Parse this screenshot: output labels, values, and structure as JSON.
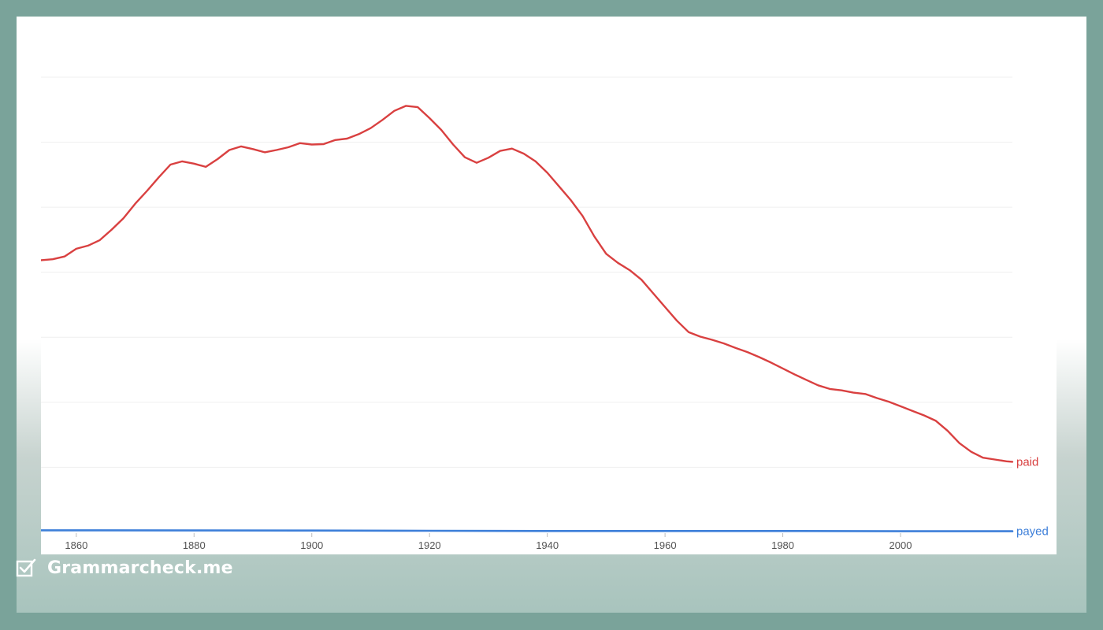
{
  "chart_data": {
    "type": "line",
    "title": "",
    "xlabel": "",
    "ylabel": "",
    "xlim": [
      1854,
      2019
    ],
    "ylim": [
      0,
      100
    ],
    "grid": true,
    "y_tick_labels_shown": false,
    "x_ticks": [
      1860,
      1880,
      1900,
      1920,
      1940,
      1960,
      1980,
      2000
    ],
    "x_tick_labels": [
      "1860",
      "1880",
      "1900",
      "1920",
      "1940",
      "1960",
      "1980",
      "2000"
    ],
    "series": [
      {
        "name": "paid",
        "color": "#d94040",
        "points": [
          [
            1854,
            59.8
          ],
          [
            1856,
            60.0
          ],
          [
            1858,
            60.6
          ],
          [
            1860,
            62.3
          ],
          [
            1862,
            63.0
          ],
          [
            1864,
            64.2
          ],
          [
            1866,
            66.5
          ],
          [
            1868,
            69.0
          ],
          [
            1870,
            72.2
          ],
          [
            1872,
            75.0
          ],
          [
            1874,
            78.0
          ],
          [
            1876,
            80.8
          ],
          [
            1878,
            81.5
          ],
          [
            1880,
            81.0
          ],
          [
            1882,
            80.3
          ],
          [
            1884,
            82.0
          ],
          [
            1886,
            84.0
          ],
          [
            1888,
            84.8
          ],
          [
            1890,
            84.2
          ],
          [
            1892,
            83.5
          ],
          [
            1894,
            84.0
          ],
          [
            1896,
            84.6
          ],
          [
            1898,
            85.5
          ],
          [
            1900,
            85.2
          ],
          [
            1902,
            85.3
          ],
          [
            1904,
            86.2
          ],
          [
            1906,
            86.5
          ],
          [
            1908,
            87.5
          ],
          [
            1910,
            88.8
          ],
          [
            1912,
            90.6
          ],
          [
            1914,
            92.6
          ],
          [
            1916,
            93.7
          ],
          [
            1918,
            93.4
          ],
          [
            1920,
            91.0
          ],
          [
            1922,
            88.4
          ],
          [
            1924,
            85.2
          ],
          [
            1926,
            82.4
          ],
          [
            1928,
            81.2
          ],
          [
            1930,
            82.3
          ],
          [
            1932,
            83.8
          ],
          [
            1934,
            84.3
          ],
          [
            1936,
            83.2
          ],
          [
            1938,
            81.5
          ],
          [
            1940,
            79.0
          ],
          [
            1942,
            76.0
          ],
          [
            1944,
            73.0
          ],
          [
            1946,
            69.5
          ],
          [
            1948,
            65.0
          ],
          [
            1950,
            61.2
          ],
          [
            1952,
            59.2
          ],
          [
            1954,
            57.6
          ],
          [
            1956,
            55.5
          ],
          [
            1958,
            52.5
          ],
          [
            1960,
            49.5
          ],
          [
            1962,
            46.5
          ],
          [
            1964,
            44.0
          ],
          [
            1966,
            43.0
          ],
          [
            1968,
            42.3
          ],
          [
            1970,
            41.5
          ],
          [
            1972,
            40.5
          ],
          [
            1974,
            39.6
          ],
          [
            1976,
            38.5
          ],
          [
            1978,
            37.3
          ],
          [
            1980,
            36.0
          ],
          [
            1982,
            34.7
          ],
          [
            1984,
            33.5
          ],
          [
            1986,
            32.3
          ],
          [
            1988,
            31.5
          ],
          [
            1990,
            31.2
          ],
          [
            1992,
            30.7
          ],
          [
            1994,
            30.4
          ],
          [
            1996,
            29.5
          ],
          [
            1998,
            28.7
          ],
          [
            2000,
            27.7
          ],
          [
            2002,
            26.7
          ],
          [
            2004,
            25.7
          ],
          [
            2006,
            24.5
          ],
          [
            2008,
            22.3
          ],
          [
            2010,
            19.6
          ],
          [
            2012,
            17.7
          ],
          [
            2014,
            16.4
          ],
          [
            2016,
            16.0
          ],
          [
            2018,
            15.6
          ],
          [
            2019,
            15.5
          ]
        ]
      },
      {
        "name": "payed",
        "color": "#3d7fd9",
        "points": [
          [
            1854,
            0.45
          ],
          [
            1860,
            0.45
          ],
          [
            1880,
            0.42
          ],
          [
            1900,
            0.4
          ],
          [
            1920,
            0.35
          ],
          [
            1940,
            0.3
          ],
          [
            1960,
            0.3
          ],
          [
            1980,
            0.3
          ],
          [
            2000,
            0.25
          ],
          [
            2019,
            0.25
          ]
        ]
      }
    ]
  },
  "brand": {
    "name": "Grammarcheck.me",
    "icon": "checkbox-check-icon"
  }
}
